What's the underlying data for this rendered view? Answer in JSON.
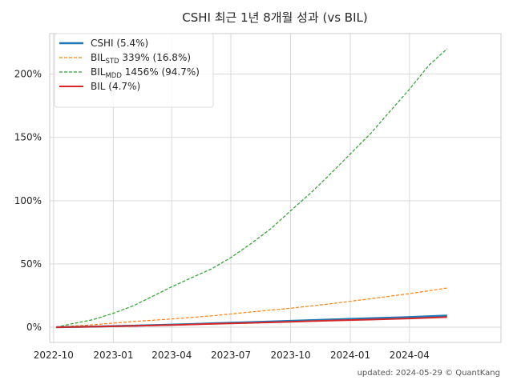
{
  "chart_data": {
    "type": "line",
    "title": "CSHI 최근 1년 8개월 성과 (vs BIL)",
    "footer": "updated: 2024-05-29 © QuantKang",
    "xlim": [
      "2022-09-25",
      "2024-08-20"
    ],
    "ylim": [
      -12,
      232
    ],
    "x_ticks": [
      {
        "date": "2022-10-01",
        "label": "2022-10"
      },
      {
        "date": "2023-01-01",
        "label": "2023-01"
      },
      {
        "date": "2023-04-01",
        "label": "2023-04"
      },
      {
        "date": "2023-07-01",
        "label": "2023-07"
      },
      {
        "date": "2023-10-01",
        "label": "2023-10"
      },
      {
        "date": "2024-01-01",
        "label": "2024-01"
      },
      {
        "date": "2024-04-01",
        "label": "2024-04"
      }
    ],
    "y_ticks": [
      {
        "value": 0,
        "label": "0%"
      },
      {
        "value": 50,
        "label": "50%"
      },
      {
        "value": 100,
        "label": "100%"
      },
      {
        "value": 150,
        "label": "150%"
      },
      {
        "value": 200,
        "label": "200%"
      }
    ],
    "grid": true,
    "legend_position": "top-left",
    "series": [
      {
        "name": "CSHI (5.4%)",
        "legend": [
          {
            "text": "CSHI (5.4%)",
            "sub": false
          }
        ],
        "color": "#1f77b4",
        "dash": "solid",
        "width": 2.5,
        "points": [
          [
            "2022-10-05",
            0
          ],
          [
            "2022-12-01",
            0.5
          ],
          [
            "2023-02-01",
            1.2
          ],
          [
            "2023-04-01",
            2.0
          ],
          [
            "2023-06-01",
            3.0
          ],
          [
            "2023-08-01",
            4.0
          ],
          [
            "2023-10-01",
            5.0
          ],
          [
            "2023-12-01",
            6.0
          ],
          [
            "2024-02-01",
            7.0
          ],
          [
            "2024-04-01",
            8.0
          ],
          [
            "2024-05-29",
            9.2
          ]
        ]
      },
      {
        "name": "BIL_STD 339% (16.8%)",
        "legend": [
          {
            "text": "BIL",
            "sub": false
          },
          {
            "text": "STD",
            "sub": true
          },
          {
            "text": " 339% (16.8%)",
            "sub": false
          }
        ],
        "color": "#ff7f0e",
        "dash": "dashed",
        "width": 1.2,
        "points": [
          [
            "2022-10-05",
            0
          ],
          [
            "2022-12-01",
            2.0
          ],
          [
            "2023-02-01",
            4.5
          ],
          [
            "2023-04-01",
            6.5
          ],
          [
            "2023-06-01",
            9.0
          ],
          [
            "2023-08-01",
            12.0
          ],
          [
            "2023-10-01",
            15.0
          ],
          [
            "2023-12-01",
            18.5
          ],
          [
            "2024-02-01",
            22.5
          ],
          [
            "2024-04-01",
            26.5
          ],
          [
            "2024-05-29",
            31.0
          ]
        ]
      },
      {
        "name": "BIL_MDD 1456% (94.7%)",
        "legend": [
          {
            "text": "BIL",
            "sub": false
          },
          {
            "text": "MDD",
            "sub": true
          },
          {
            "text": " 1456% (94.7%)",
            "sub": false
          }
        ],
        "color": "#2ca02c",
        "dash": "dashed",
        "width": 1.2,
        "points": [
          [
            "2022-10-05",
            0
          ],
          [
            "2022-11-01",
            3
          ],
          [
            "2022-12-01",
            6
          ],
          [
            "2023-01-01",
            11
          ],
          [
            "2023-02-01",
            17
          ],
          [
            "2023-03-01",
            24
          ],
          [
            "2023-04-01",
            32
          ],
          [
            "2023-05-01",
            39
          ],
          [
            "2023-06-01",
            46
          ],
          [
            "2023-07-01",
            55
          ],
          [
            "2023-08-01",
            66
          ],
          [
            "2023-09-01",
            78
          ],
          [
            "2023-10-01",
            92
          ],
          [
            "2023-11-01",
            106
          ],
          [
            "2023-12-01",
            121
          ],
          [
            "2024-01-01",
            137
          ],
          [
            "2024-02-01",
            153
          ],
          [
            "2024-03-01",
            170
          ],
          [
            "2024-04-01",
            188
          ],
          [
            "2024-05-01",
            207
          ],
          [
            "2024-05-29",
            220
          ]
        ]
      },
      {
        "name": "BIL (4.7%)",
        "legend": [
          {
            "text": "BIL (4.7%)",
            "sub": false
          }
        ],
        "color": "#d62728",
        "dash": "solid",
        "width": 2.0,
        "points": [
          [
            "2022-10-05",
            0
          ],
          [
            "2022-12-01",
            0.4
          ],
          [
            "2023-02-01",
            1.0
          ],
          [
            "2023-04-01",
            1.7
          ],
          [
            "2023-06-01",
            2.6
          ],
          [
            "2023-08-01",
            3.4
          ],
          [
            "2023-10-01",
            4.3
          ],
          [
            "2023-12-01",
            5.2
          ],
          [
            "2024-02-01",
            6.0
          ],
          [
            "2024-04-01",
            6.9
          ],
          [
            "2024-05-29",
            8.0
          ]
        ]
      }
    ]
  }
}
